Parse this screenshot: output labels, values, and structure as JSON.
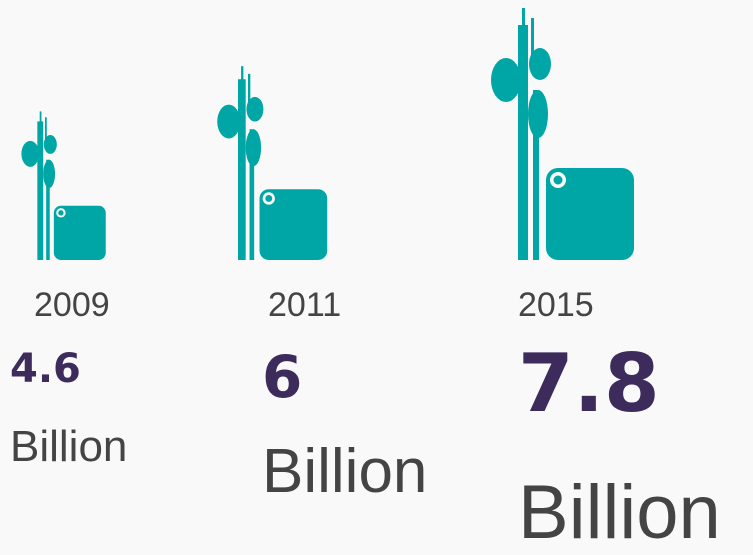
{
  "chart_data": {
    "type": "pictograph",
    "title": "",
    "xlabel": "",
    "ylabel": "",
    "categories": [
      "2009",
      "2011",
      "2015"
    ],
    "values": [
      4.6,
      6,
      7.8
    ],
    "value_labels": [
      "4.6",
      "6",
      "7.8"
    ],
    "unit_label": "Billion",
    "icon": "cell-tower-phone-icon",
    "colors": {
      "icon": "#00a6a6",
      "value": "#3d2b5c",
      "text": "#444444",
      "background": "#f9f9f9"
    }
  }
}
